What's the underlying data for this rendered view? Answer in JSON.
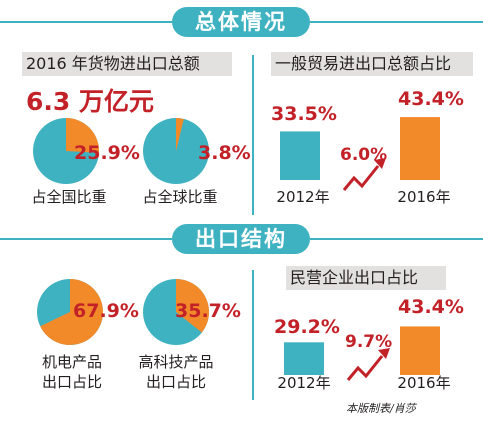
{
  "colors": {
    "teal": "#3fb2c1",
    "orange": "#f38a2a",
    "red": "#c32128",
    "label_bg": "#e3e1e0"
  },
  "section1": {
    "title": "总体情况"
  },
  "section2": {
    "title": "出口结构"
  },
  "total": {
    "label": "2016 年货物进出口总额",
    "value": "6.3 万亿元"
  },
  "credit": "本版制表/肖莎",
  "chart_data": [
    {
      "type": "pie",
      "percent_label": "25.9%",
      "value": 25.9,
      "caption": "占全国比重"
    },
    {
      "type": "pie",
      "percent_label": "3.8%",
      "value": 3.8,
      "caption": "占全球比重"
    },
    {
      "type": "bar",
      "title": "一般贸易进出口总额占比",
      "categories": [
        "2012年",
        "2016年"
      ],
      "values": [
        33.5,
        43.4
      ],
      "value_labels": [
        "33.5%",
        "43.4%"
      ],
      "change_label": "6.0%"
    },
    {
      "type": "pie",
      "percent_label": "67.9%",
      "value": 67.9,
      "caption": [
        "机电产品",
        "出口占比"
      ]
    },
    {
      "type": "pie",
      "percent_label": "35.7%",
      "value": 35.7,
      "caption": [
        "高科技产品",
        "出口占比"
      ]
    },
    {
      "type": "bar",
      "title": "民营企业出口占比",
      "categories": [
        "2012年",
        "2016年"
      ],
      "values": [
        29.2,
        43.4
      ],
      "value_labels": [
        "29.2%",
        "43.4%"
      ],
      "change_label": "9.7%"
    }
  ]
}
